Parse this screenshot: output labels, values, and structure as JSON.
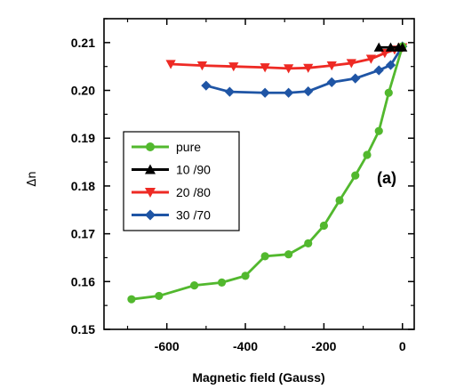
{
  "chart_data": {
    "type": "line",
    "xlabel": "Magnetic field (Gauss)",
    "ylabel": "Δn",
    "annotation": "(a)",
    "xlim": [
      -760,
      30
    ],
    "ylim": [
      0.15,
      0.215
    ],
    "x_ticks": [
      -600,
      -400,
      -200,
      0
    ],
    "y_ticks": [
      0.15,
      0.16,
      0.17,
      0.18,
      0.19,
      0.2,
      0.21
    ],
    "y_tick_labels": [
      "0.15",
      "0.16",
      "0.17",
      "0.18",
      "0.19",
      "0.20",
      "0.21"
    ],
    "legend_position": "center-left",
    "series": [
      {
        "name": "pure",
        "color": "#52b82e",
        "marker": "circle",
        "x": [
          -690,
          -620,
          -530,
          -460,
          -400,
          -350,
          -290,
          -240,
          -200,
          -160,
          -120,
          -90,
          -60,
          -35,
          0
        ],
        "y": [
          0.1563,
          0.157,
          0.1592,
          0.1598,
          0.1612,
          0.1653,
          0.1657,
          0.168,
          0.1717,
          0.177,
          0.1822,
          0.1865,
          0.1915,
          0.1995,
          0.2092
        ]
      },
      {
        "name": "10 /90",
        "color": "#000000",
        "marker": "triangle-up",
        "x": [
          -60,
          -30,
          -10,
          0
        ],
        "y": [
          0.209,
          0.209,
          0.209,
          0.209
        ]
      },
      {
        "name": "20 /80",
        "color": "#ee2a24",
        "marker": "triangle-down",
        "x": [
          -590,
          -510,
          -430,
          -350,
          -290,
          -240,
          -180,
          -130,
          -80,
          -45,
          -20,
          0
        ],
        "y": [
          0.2055,
          0.2052,
          0.205,
          0.2048,
          0.2046,
          0.2047,
          0.2052,
          0.2057,
          0.2066,
          0.2078,
          0.2085,
          0.209
        ]
      },
      {
        "name": "30 /70",
        "color": "#1f55a5",
        "marker": "diamond",
        "x": [
          -500,
          -440,
          -350,
          -290,
          -240,
          -180,
          -120,
          -60,
          -30,
          0
        ],
        "y": [
          0.201,
          0.1997,
          0.1995,
          0.1995,
          0.1998,
          0.2017,
          0.2025,
          0.2042,
          0.2053,
          0.2092
        ]
      }
    ]
  }
}
